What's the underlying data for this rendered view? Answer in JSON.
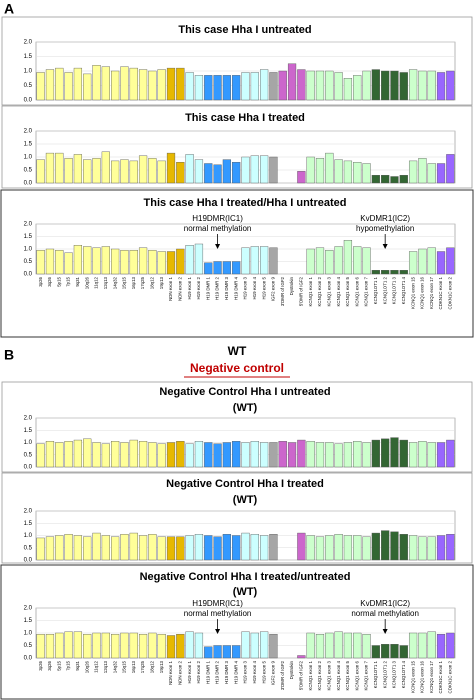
{
  "panels": [
    {
      "label": "A"
    },
    {
      "label": "B"
    }
  ],
  "wt_label": "WT",
  "negative_control": "Negative control",
  "chart_data": [
    {
      "type": "bar",
      "title": "This case Hha I untreated",
      "ylim": [
        0,
        2
      ],
      "yticks": [
        {
          "value": 0,
          "label": "0.0"
        },
        {
          "value": 0.5,
          "label": "0.5"
        },
        {
          "value": 1,
          "label": "1.0"
        },
        {
          "value": 1.5,
          "label": "1.5"
        },
        {
          "value": 2,
          "label": "2.0"
        }
      ],
      "grid": true,
      "values": [
        0.95,
        1.05,
        1.1,
        0.95,
        1.1,
        0.9,
        1.2,
        1.15,
        1.0,
        1.15,
        1.1,
        1.05,
        1.0,
        1.05,
        1.1,
        1.1,
        0.95,
        0.85,
        0.85,
        0.85,
        0.85,
        0.85,
        0.95,
        0.95,
        1.05,
        0.95,
        1.0,
        1.25,
        1.05,
        1.0,
        1.0,
        1.0,
        0.95,
        0.75,
        0.85,
        1.0,
        1.05,
        1.0,
        1.0,
        0.95,
        1.05,
        1.0,
        1.0,
        0.95,
        1.0
      ],
      "colors": [
        "#ffff99",
        "#ffff99",
        "#ffff99",
        "#ffff99",
        "#ffff99",
        "#ffff99",
        "#ffff99",
        "#ffff99",
        "#ffff99",
        "#ffff99",
        "#ffff99",
        "#ffff99",
        "#ffff99",
        "#ffff99",
        "#e6b800",
        "#e6b800",
        "#ccffff",
        "#ccffff",
        "#3399ff",
        "#3399ff",
        "#3399ff",
        "#3399ff",
        "#ccffff",
        "#ccffff",
        "#ccffff",
        "#a6a6a6",
        "#cc66cc",
        "#cc66cc",
        "#cc66cc",
        "#ccffcc",
        "#ccffcc",
        "#ccffcc",
        "#ccffcc",
        "#ccffcc",
        "#ccffcc",
        "#ccffcc",
        "#336633",
        "#336633",
        "#336633",
        "#336633",
        "#ccffcc",
        "#ccffcc",
        "#ccffcc",
        "#9966ff",
        "#9966ff"
      ]
    },
    {
      "type": "bar",
      "title": "This case Hha I treated",
      "ylim": [
        0,
        2
      ],
      "yticks": [
        {
          "value": 0,
          "label": "0.0"
        },
        {
          "value": 0.5,
          "label": "0.5"
        },
        {
          "value": 1,
          "label": "1.0"
        },
        {
          "value": 1.5,
          "label": "1.5"
        },
        {
          "value": 2,
          "label": "2.0"
        }
      ],
      "grid": true,
      "values": [
        0.9,
        1.15,
        1.15,
        0.95,
        1.1,
        0.9,
        0.95,
        1.2,
        0.85,
        0.9,
        0.85,
        1.05,
        0.95,
        0.85,
        1.15,
        0.8,
        1.1,
        0.9,
        0.75,
        0.7,
        0.9,
        0.8,
        1.0,
        1.05,
        1.05,
        1.0,
        0,
        0,
        0.45,
        1.0,
        0.95,
        1.15,
        0.9,
        0.85,
        0.8,
        0.75,
        0.3,
        0.3,
        0.25,
        0.3,
        0.85,
        0.95,
        0.75,
        0.75,
        1.1
      ],
      "colors": [
        "#ffff99",
        "#ffff99",
        "#ffff99",
        "#ffff99",
        "#ffff99",
        "#ffff99",
        "#ffff99",
        "#ffff99",
        "#ffff99",
        "#ffff99",
        "#ffff99",
        "#ffff99",
        "#ffff99",
        "#ffff99",
        "#e6b800",
        "#e6b800",
        "#ccffff",
        "#ccffff",
        "#3399ff",
        "#3399ff",
        "#3399ff",
        "#3399ff",
        "#ccffff",
        "#ccffff",
        "#ccffff",
        "#a6a6a6",
        "#cc66cc",
        "#cc66cc",
        "#cc66cc",
        "#ccffcc",
        "#ccffcc",
        "#ccffcc",
        "#ccffcc",
        "#ccffcc",
        "#ccffcc",
        "#ccffcc",
        "#336633",
        "#336633",
        "#336633",
        "#336633",
        "#ccffcc",
        "#ccffcc",
        "#ccffcc",
        "#9966ff",
        "#9966ff"
      ]
    },
    {
      "type": "bar",
      "title": "This case Hha I treated/Hha I untreated",
      "annotations": [
        {
          "title": "H19DMR(IC1)",
          "text": "normal methylation"
        },
        {
          "title": "KvDMR1(IC2)",
          "text": "hypomethylation"
        }
      ],
      "ylim": [
        0,
        2
      ],
      "yticks": [
        {
          "value": 0,
          "label": "0.0"
        },
        {
          "value": 0.5,
          "label": "0.5"
        },
        {
          "value": 1,
          "label": "1.0"
        },
        {
          "value": 1.5,
          "label": "1.5"
        },
        {
          "value": 2,
          "label": "2.0"
        }
      ],
      "grid": true,
      "categories": [
        "3p26",
        "3q26",
        "5p15",
        "7p15",
        "9q31",
        "10q26",
        "11q12",
        "12q13",
        "14q32",
        "15q15",
        "16p13",
        "17q25",
        "18q12",
        "19p13",
        "NDN exon 1",
        "NDN exon 2",
        "H19 exon 1",
        "H19 exon 2",
        "H19 DMR 1",
        "H19 DMR 2",
        "H19 DMR 3",
        "H19 DMR 4",
        "H19 exon 3",
        "H19 exon 4",
        "H19 exon 5",
        "IGF2 exon 9",
        "3'DMR of IGF2",
        "Dystrokin",
        "5'DMR of IGF2",
        "KCNQ1 exon 1",
        "KCNQ1 exon 2",
        "KCNQ1 exon 3",
        "KCNQ1 exon 4",
        "KCNQ1 exon 5",
        "KCNQ1 exon 6",
        "KCNQ1 exon 7",
        "KCNQ1OT1 1",
        "KCNQ1OT1 2",
        "KCNQ1OT1 3",
        "KCNQ1OT1 4",
        "KCNQ1 exon 15",
        "KCNQ1 exon 16",
        "KCNQ1 exon 17",
        "CDKN1C exon 1",
        "CDKN1C exon 2"
      ],
      "values": [
        0.95,
        1.0,
        0.95,
        0.85,
        1.15,
        1.1,
        1.05,
        1.1,
        1.0,
        0.95,
        0.95,
        1.05,
        0.95,
        0.9,
        0.9,
        1.0,
        1.15,
        1.2,
        0.45,
        0.5,
        0.5,
        0.5,
        1.05,
        1.1,
        1.1,
        1.05,
        0,
        0,
        0,
        1.0,
        1.05,
        0.95,
        1.1,
        1.35,
        1.1,
        1.05,
        0.15,
        0.15,
        0.15,
        0.15,
        0.9,
        1.0,
        1.05,
        0.9,
        1.05
      ],
      "colors": [
        "#ffff99",
        "#ffff99",
        "#ffff99",
        "#ffff99",
        "#ffff99",
        "#ffff99",
        "#ffff99",
        "#ffff99",
        "#ffff99",
        "#ffff99",
        "#ffff99",
        "#ffff99",
        "#ffff99",
        "#ffff99",
        "#e6b800",
        "#e6b800",
        "#ccffff",
        "#ccffff",
        "#3399ff",
        "#3399ff",
        "#3399ff",
        "#3399ff",
        "#ccffff",
        "#ccffff",
        "#ccffff",
        "#a6a6a6",
        "#cc66cc",
        "#cc66cc",
        "#cc66cc",
        "#ccffcc",
        "#ccffcc",
        "#ccffcc",
        "#ccffcc",
        "#ccffcc",
        "#ccffcc",
        "#ccffcc",
        "#336633",
        "#336633",
        "#336633",
        "#336633",
        "#ccffcc",
        "#ccffcc",
        "#ccffcc",
        "#9966ff",
        "#9966ff"
      ]
    },
    {
      "type": "bar",
      "title": "Negative Control Hha I untreated",
      "subtitle": "(WT)",
      "ylim": [
        0,
        2
      ],
      "yticks": [
        {
          "value": 0,
          "label": "0.0"
        },
        {
          "value": 0.5,
          "label": "0.5"
        },
        {
          "value": 1,
          "label": "1.0"
        },
        {
          "value": 1.5,
          "label": "1.5"
        },
        {
          "value": 2,
          "label": "2.0"
        }
      ],
      "grid": true,
      "values": [
        0.95,
        1.05,
        1.0,
        1.05,
        1.1,
        1.15,
        1.0,
        0.95,
        1.05,
        1.0,
        1.1,
        1.05,
        1.0,
        0.95,
        1.0,
        1.05,
        0.95,
        1.05,
        1.0,
        0.95,
        1.0,
        1.05,
        1.0,
        1.05,
        1.0,
        1.0,
        1.05,
        1.0,
        1.1,
        1.05,
        1.0,
        1.0,
        0.95,
        1.0,
        1.05,
        1.0,
        1.1,
        1.15,
        1.2,
        1.1,
        1.0,
        1.05,
        1.0,
        1.0,
        1.1
      ],
      "colors": [
        "#ffff99",
        "#ffff99",
        "#ffff99",
        "#ffff99",
        "#ffff99",
        "#ffff99",
        "#ffff99",
        "#ffff99",
        "#ffff99",
        "#ffff99",
        "#ffff99",
        "#ffff99",
        "#ffff99",
        "#ffff99",
        "#e6b800",
        "#e6b800",
        "#ccffff",
        "#ccffff",
        "#3399ff",
        "#3399ff",
        "#3399ff",
        "#3399ff",
        "#ccffff",
        "#ccffff",
        "#ccffff",
        "#a6a6a6",
        "#cc66cc",
        "#cc66cc",
        "#cc66cc",
        "#ccffcc",
        "#ccffcc",
        "#ccffcc",
        "#ccffcc",
        "#ccffcc",
        "#ccffcc",
        "#ccffcc",
        "#336633",
        "#336633",
        "#336633",
        "#336633",
        "#ccffcc",
        "#ccffcc",
        "#ccffcc",
        "#9966ff",
        "#9966ff"
      ]
    },
    {
      "type": "bar",
      "title": "Negative Control Hha I treated",
      "subtitle": "(WT)",
      "ylim": [
        0,
        2
      ],
      "yticks": [
        {
          "value": 0,
          "label": "0.0"
        },
        {
          "value": 0.5,
          "label": "0.5"
        },
        {
          "value": 1,
          "label": "1.0"
        },
        {
          "value": 1.5,
          "label": "1.5"
        },
        {
          "value": 2,
          "label": "2.0"
        }
      ],
      "grid": true,
      "values": [
        0.9,
        0.95,
        1.0,
        1.05,
        1.0,
        0.95,
        1.1,
        1.0,
        0.95,
        1.05,
        1.1,
        1.0,
        1.05,
        0.95,
        0.95,
        0.95,
        1.0,
        1.05,
        1.0,
        0.95,
        1.05,
        1.0,
        1.1,
        1.05,
        1.0,
        1.05,
        0,
        0,
        1.1,
        1.0,
        0.95,
        1.0,
        1.05,
        1.0,
        1.0,
        0.95,
        1.1,
        1.2,
        1.15,
        1.05,
        1.0,
        0.95,
        0.95,
        1.0,
        1.05
      ],
      "colors": [
        "#ffff99",
        "#ffff99",
        "#ffff99",
        "#ffff99",
        "#ffff99",
        "#ffff99",
        "#ffff99",
        "#ffff99",
        "#ffff99",
        "#ffff99",
        "#ffff99",
        "#ffff99",
        "#ffff99",
        "#ffff99",
        "#e6b800",
        "#e6b800",
        "#ccffff",
        "#ccffff",
        "#3399ff",
        "#3399ff",
        "#3399ff",
        "#3399ff",
        "#ccffff",
        "#ccffff",
        "#ccffff",
        "#a6a6a6",
        "#cc66cc",
        "#cc66cc",
        "#cc66cc",
        "#ccffcc",
        "#ccffcc",
        "#ccffcc",
        "#ccffcc",
        "#ccffcc",
        "#ccffcc",
        "#ccffcc",
        "#336633",
        "#336633",
        "#336633",
        "#336633",
        "#ccffcc",
        "#ccffcc",
        "#ccffcc",
        "#9966ff",
        "#9966ff"
      ]
    },
    {
      "type": "bar",
      "title": "Negative Control Hha I treated/untreated",
      "subtitle": "(WT)",
      "annotations": [
        {
          "title": "H19DMR(IC1)",
          "text": "normal methylation"
        },
        {
          "title": "KvDMR1(IC2)",
          "text": "normal methylation"
        }
      ],
      "ylim": [
        0,
        2
      ],
      "yticks": [
        {
          "value": 0,
          "label": "0.0"
        },
        {
          "value": 0.5,
          "label": "0.5"
        },
        {
          "value": 1,
          "label": "1.0"
        },
        {
          "value": 1.5,
          "label": "1.5"
        },
        {
          "value": 2,
          "label": "2.0"
        }
      ],
      "grid": true,
      "categories": [
        "3p26",
        "3q26",
        "5p15",
        "7p15",
        "9q31",
        "10q26",
        "11q12",
        "12q13",
        "14q32",
        "15q15",
        "16p13",
        "17q25",
        "18q12",
        "19p13",
        "NDN exon 1",
        "NDN exon 2",
        "H19 exon 1",
        "H19 exon 2",
        "H19 DMR 1",
        "H19 DMR 2",
        "H19 DMR 3",
        "H19 DMR 4",
        "H19 exon 3",
        "H19 exon 4",
        "H19 exon 5",
        "IGF2 exon 9",
        "3'DMR of IGF2",
        "Dystrokin",
        "5'DMR of IGF2",
        "KCNQ1 exon 1",
        "KCNQ1 exon 2",
        "KCNQ1 exon 3",
        "KCNQ1 exon 4",
        "KCNQ1 exon 5",
        "KCNQ1 exon 6",
        "KCNQ1 exon 7",
        "KCNQ1OT1 1",
        "KCNQ1OT1 2",
        "KCNQ1OT1 3",
        "KCNQ1OT1 4",
        "KCNQ1 exon 15",
        "KCNQ1 exon 16",
        "KCNQ1 exon 17",
        "CDKN1C exon 1",
        "CDKN1C exon 2"
      ],
      "values": [
        0.95,
        0.95,
        1.0,
        1.05,
        1.05,
        0.95,
        1.0,
        1.0,
        0.95,
        1.0,
        1.0,
        0.95,
        1.0,
        0.95,
        0.9,
        0.95,
        1.05,
        1.0,
        0.45,
        0.5,
        0.5,
        0.5,
        1.05,
        1.0,
        1.05,
        0.95,
        0,
        0,
        0.1,
        1.0,
        0.95,
        1.0,
        1.05,
        1.0,
        1.0,
        0.95,
        0.5,
        0.55,
        0.55,
        0.5,
        1.0,
        1.0,
        1.05,
        0.95,
        1.0
      ],
      "colors": [
        "#ffff99",
        "#ffff99",
        "#ffff99",
        "#ffff99",
        "#ffff99",
        "#ffff99",
        "#ffff99",
        "#ffff99",
        "#ffff99",
        "#ffff99",
        "#ffff99",
        "#ffff99",
        "#ffff99",
        "#ffff99",
        "#e6b800",
        "#e6b800",
        "#ccffff",
        "#ccffff",
        "#3399ff",
        "#3399ff",
        "#3399ff",
        "#3399ff",
        "#ccffff",
        "#ccffff",
        "#ccffff",
        "#a6a6a6",
        "#cc66cc",
        "#cc66cc",
        "#cc66cc",
        "#ccffcc",
        "#ccffcc",
        "#ccffcc",
        "#ccffcc",
        "#ccffcc",
        "#ccffcc",
        "#ccffcc",
        "#336633",
        "#336633",
        "#336633",
        "#336633",
        "#ccffcc",
        "#ccffcc",
        "#ccffcc",
        "#9966ff",
        "#9966ff"
      ]
    }
  ]
}
